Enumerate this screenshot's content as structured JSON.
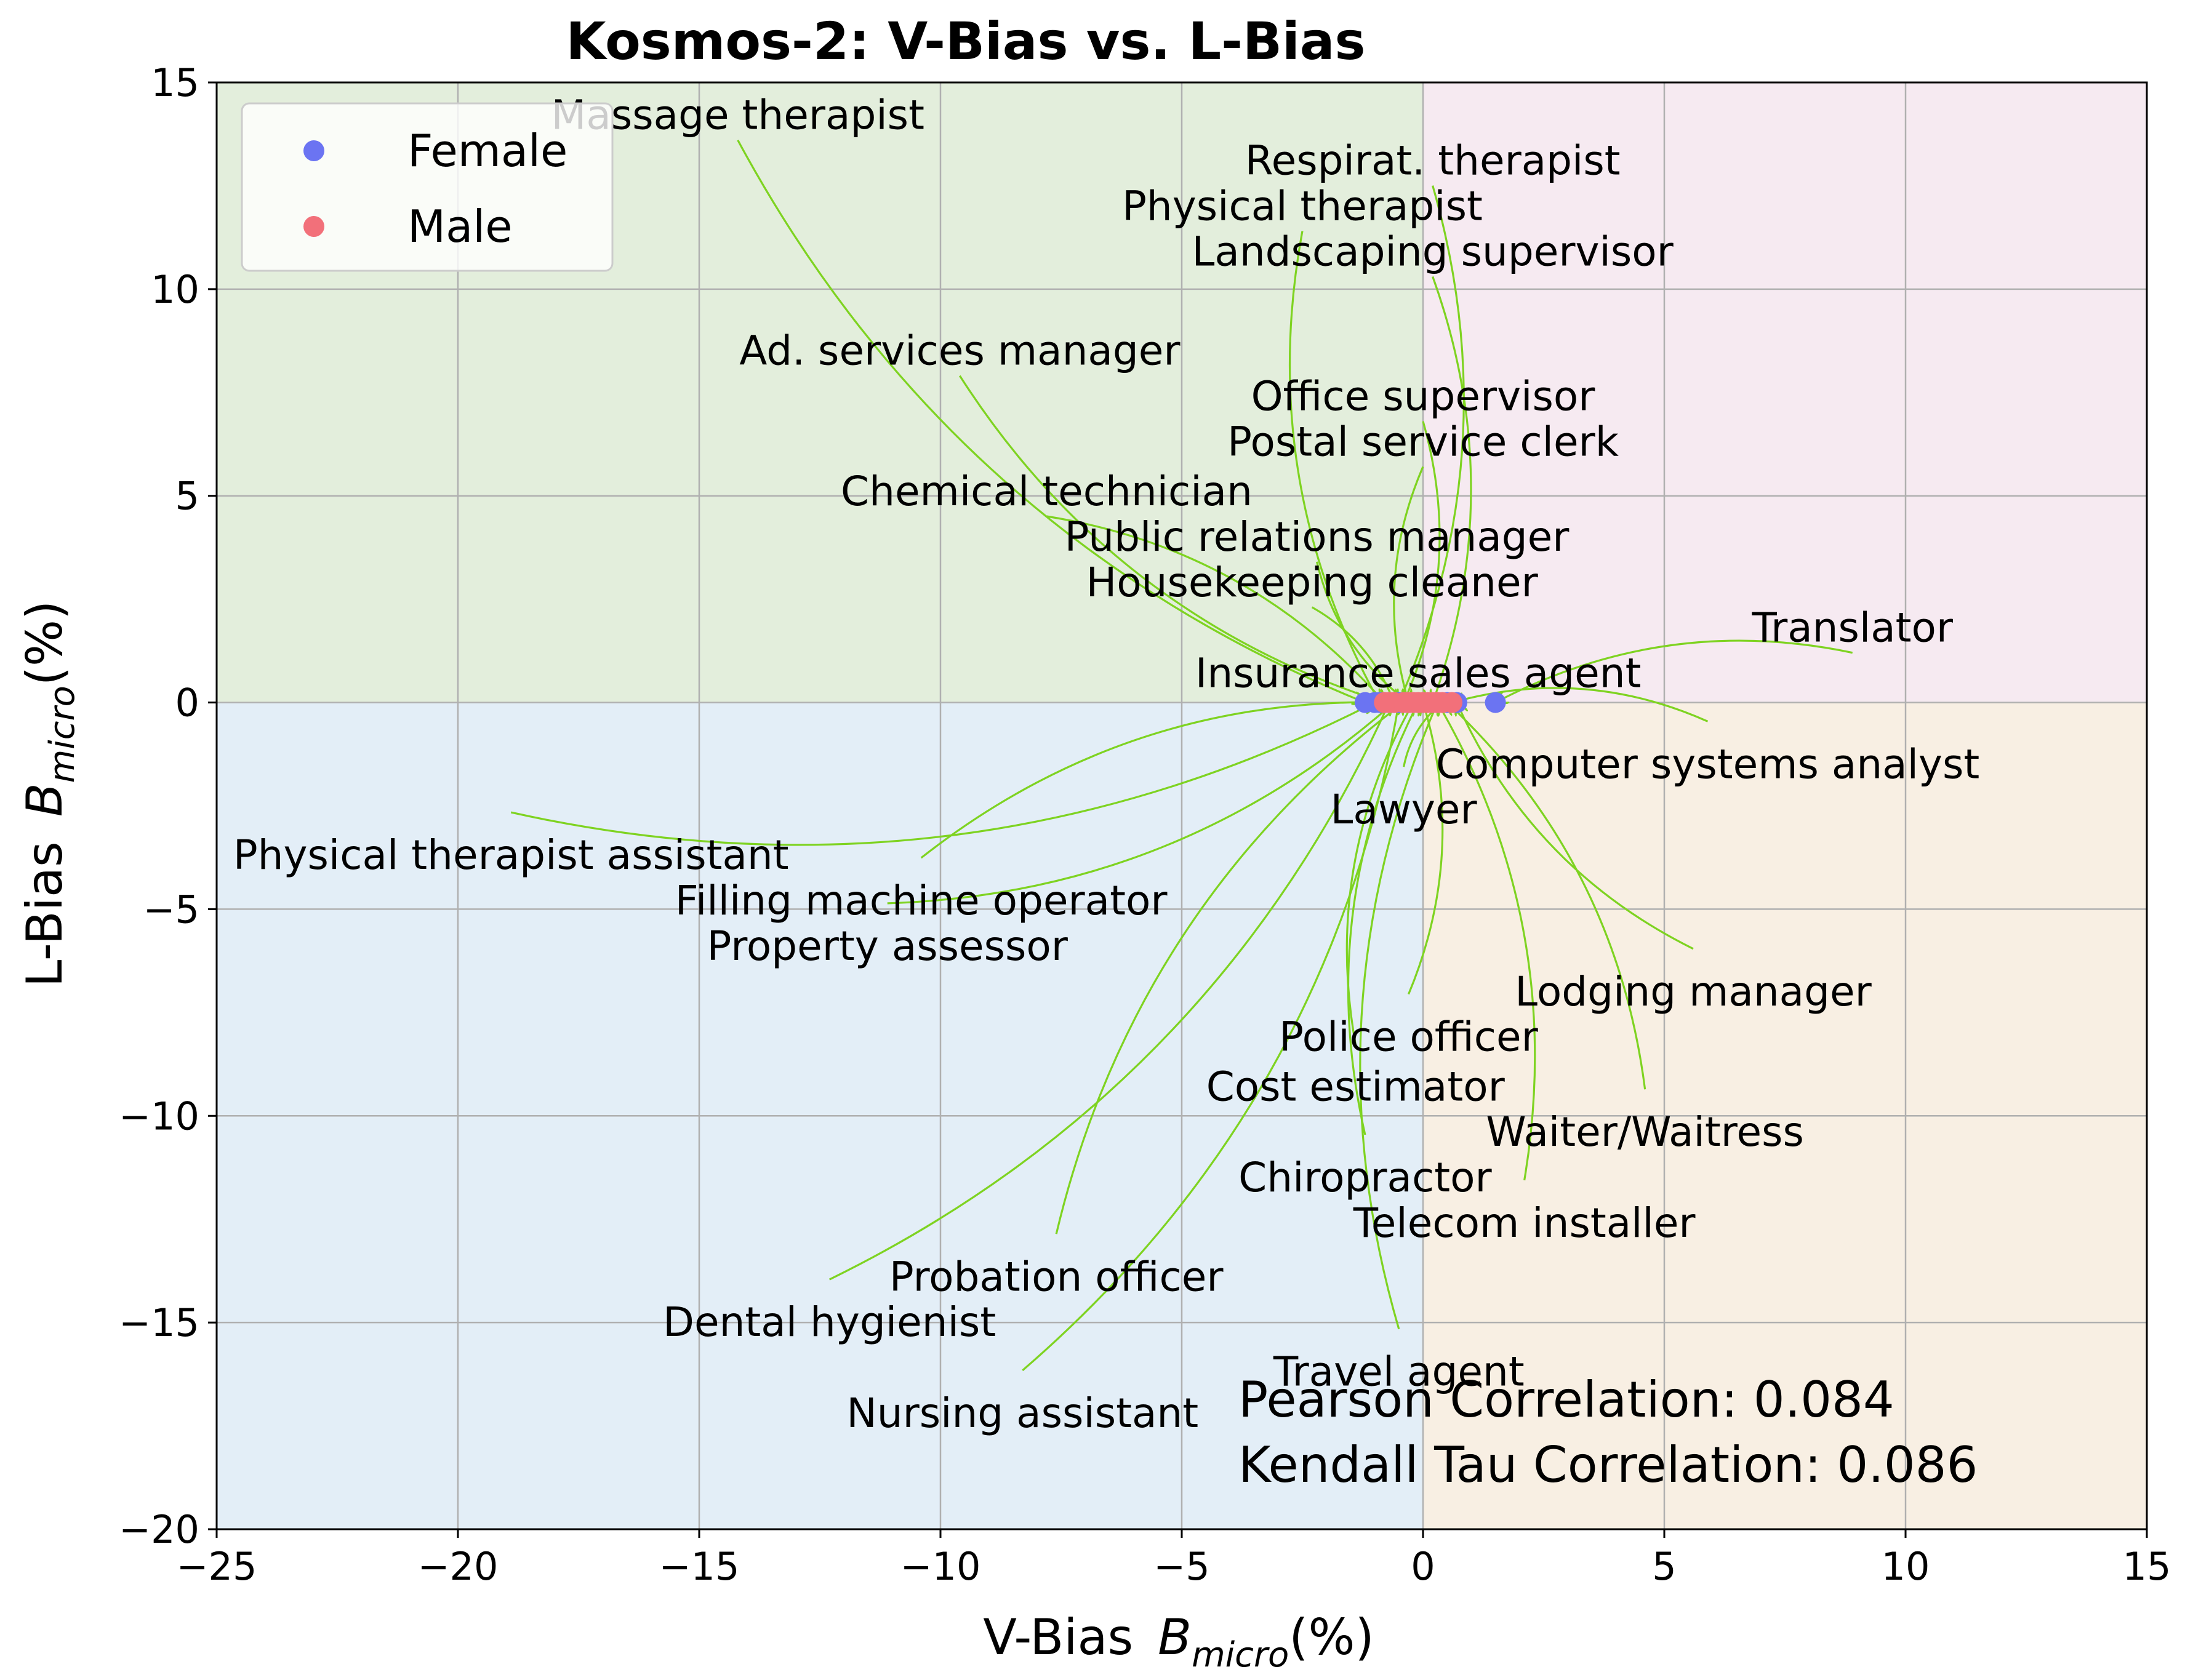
{
  "chart_data": {
    "type": "scatter",
    "title": "Kosmos-2: V-Bias vs. L-Bias",
    "xlabel": "V-Bias",
    "xlabel_math": "B",
    "xlabel_sub": "micro",
    "xlabel_unit": "(%)",
    "ylabel": "L-Bias",
    "ylabel_math": "B",
    "ylabel_sub": "micro",
    "ylabel_unit": "(%)",
    "xlim": [
      -25,
      15
    ],
    "ylim": [
      -20,
      15
    ],
    "xticks": [
      -25,
      -20,
      -15,
      -10,
      -5,
      0,
      5,
      10,
      15
    ],
    "yticks": [
      -20,
      -15,
      -10,
      -5,
      0,
      5,
      10,
      15
    ],
    "xtick_labels": [
      "−25",
      "−20",
      "−15",
      "−10",
      "−5",
      "0",
      "5",
      "10",
      "15"
    ],
    "ytick_labels": [
      "−20",
      "−15",
      "−10",
      "−5",
      "0",
      "5",
      "10",
      "15"
    ],
    "grid": true,
    "legend_position": "top-left",
    "quadrant_colors": {
      "top_left": "#e3eedc",
      "top_right": "#f6eaf1",
      "bottom_left": "#e3eef7",
      "bottom_right": "#f8efe3"
    },
    "arrow_color": "#7ed321",
    "series": [
      {
        "name": "Female",
        "color": "#6b74f2",
        "points": [
          {
            "label": "Massage therapist",
            "x": -1.2,
            "y": 0.0
          },
          {
            "label": "Physical therapist",
            "x": -0.9,
            "y": 0.0
          },
          {
            "label": "Respirat. therapist",
            "x": -0.5,
            "y": 0.0
          },
          {
            "label": "Ad. services manager",
            "x": -0.8,
            "y": 0.0
          },
          {
            "label": "Office supervisor",
            "x": -0.4,
            "y": 0.0
          },
          {
            "label": "Postal service clerk",
            "x": -0.3,
            "y": 0.0
          },
          {
            "label": "Housekeeping cleaner",
            "x": -0.6,
            "y": 0.0
          },
          {
            "label": "Physical therapist assistant",
            "x": -1.0,
            "y": 0.0
          },
          {
            "label": "Dental hygienist",
            "x": -0.7,
            "y": 0.0
          },
          {
            "label": "Nursing assistant",
            "x": -0.5,
            "y": 0.0
          },
          {
            "label": "Translator",
            "x": 1.5,
            "y": 0.0
          },
          {
            "label": "Lodging manager",
            "x": 0.7,
            "y": 0.0
          },
          {
            "label": "Waiter/Waitress",
            "x": 0.5,
            "y": 0.0
          },
          {
            "label": "Travel agent",
            "x": 0.3,
            "y": 0.0
          }
        ]
      },
      {
        "name": "Male",
        "color": "#f2707a",
        "points": [
          {
            "label": "Landscaping supervisor",
            "x": 0.2,
            "y": 0.0
          },
          {
            "label": "Chemical technician",
            "x": -0.8,
            "y": 0.0
          },
          {
            "label": "Public relations manager",
            "x": -0.3,
            "y": 0.0
          },
          {
            "label": "Insurance sales agent",
            "x": 0.1,
            "y": 0.0
          },
          {
            "label": "Computer systems analyst",
            "x": 0.6,
            "y": 0.0
          },
          {
            "label": "Lawyer",
            "x": 0.4,
            "y": 0.0
          },
          {
            "label": "Filling machine operator",
            "x": -0.7,
            "y": 0.0
          },
          {
            "label": "Property assessor",
            "x": -0.6,
            "y": 0.0
          },
          {
            "label": "Police officer",
            "x": 0.0,
            "y": 0.0
          },
          {
            "label": "Cost estimator",
            "x": -0.2,
            "y": 0.0
          },
          {
            "label": "Chiropractor",
            "x": -0.1,
            "y": 0.0
          },
          {
            "label": "Telecom installer",
            "x": 0.3,
            "y": 0.0
          },
          {
            "label": "Probation officer",
            "x": -0.4,
            "y": 0.0
          }
        ]
      }
    ],
    "annotations": [
      {
        "text": "Massage therapist",
        "x": -14.2,
        "y": 14.2
      },
      {
        "text": "Respirat. therapist",
        "x": 0.2,
        "y": 13.1
      },
      {
        "text": "Physical therapist",
        "x": -2.5,
        "y": 12.0
      },
      {
        "text": "Landscaping supervisor",
        "x": 0.2,
        "y": 10.9
      },
      {
        "text": "Ad. services manager",
        "x": -9.6,
        "y": 8.5
      },
      {
        "text": "Office supervisor",
        "x": 0.0,
        "y": 7.4
      },
      {
        "text": "Postal service clerk",
        "x": 0.0,
        "y": 6.3
      },
      {
        "text": "Chemical technician",
        "x": -7.8,
        "y": 5.1
      },
      {
        "text": "Public relations manager",
        "x": -2.2,
        "y": 4.0
      },
      {
        "text": "Housekeeping cleaner",
        "x": -2.3,
        "y": 2.9
      },
      {
        "text": "Translator",
        "x": 8.9,
        "y": 1.8
      },
      {
        "text": "Insurance sales agent",
        "x": -0.1,
        "y": 0.7
      },
      {
        "text": "Computer systems analyst",
        "x": 5.9,
        "y": -1.5
      },
      {
        "text": "Lawyer",
        "x": -0.4,
        "y": -2.6
      },
      {
        "text": "Physical therapist assistant",
        "x": -18.9,
        "y": -3.7
      },
      {
        "text": "Filling machine operator",
        "x": -10.4,
        "y": -4.8
      },
      {
        "text": "Property assessor",
        "x": -11.1,
        "y": -5.9
      },
      {
        "text": "Lodging manager",
        "x": 5.6,
        "y": -7.0
      },
      {
        "text": "Police officer",
        "x": -0.3,
        "y": -8.1
      },
      {
        "text": "Cost estimator",
        "x": -1.4,
        "y": -9.3
      },
      {
        "text": "Waiter/Waitress",
        "x": 4.6,
        "y": -10.4
      },
      {
        "text": "Chiropractor",
        "x": -1.2,
        "y": -11.5
      },
      {
        "text": "Telecom installer",
        "x": 2.1,
        "y": -12.6
      },
      {
        "text": "Probation officer",
        "x": -7.6,
        "y": -13.9
      },
      {
        "text": "Dental hygienist",
        "x": -12.3,
        "y": -15.0
      },
      {
        "text": "Travel agent",
        "x": -0.5,
        "y": -16.2
      },
      {
        "text": "Nursing assistant",
        "x": -8.3,
        "y": -17.2
      }
    ],
    "correlation_text": [
      "Pearson Correlation: 0.084",
      "Kendall Tau Correlation: 0.086"
    ]
  }
}
